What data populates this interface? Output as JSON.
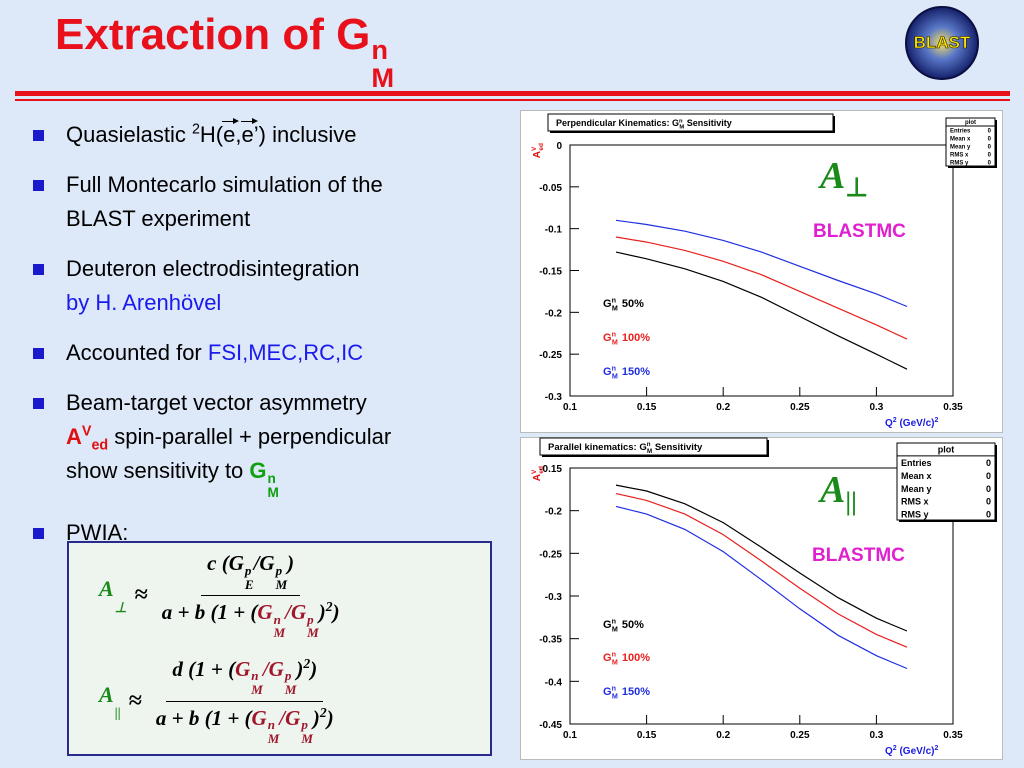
{
  "title": [
    {
      "t": "Extraction of G",
      "sup": "n",
      "sub": "M"
    }
  ],
  "logo": "BLAST",
  "bullets": [
    [
      [
        {
          "t": "Quasielastic "
        },
        {
          "t": "2",
          "s": "sup"
        },
        {
          "t": "H("
        },
        {
          "t": "e",
          "vec": true
        },
        {
          "t": ","
        },
        {
          "t": "e",
          "vec": true
        },
        {
          "t": "’) inclusive"
        }
      ]
    ],
    [
      [
        {
          "t": "Full Montecarlo simulation of the"
        }
      ],
      [
        {
          "t": "BLAST experiment"
        }
      ]
    ],
    [
      [
        {
          "t": "Deuteron electrodisintegration"
        }
      ],
      [
        {
          "t": "by H. Arenhövel",
          "c": "#1a1aee"
        }
      ]
    ],
    [
      [
        {
          "t": "Accounted for "
        },
        {
          "t": "FSI,MEC,RC,IC",
          "c": "#1a1aee"
        }
      ]
    ],
    [
      [
        {
          "t": "Beam-target vector asymmetry"
        }
      ],
      [
        {
          "t": "A",
          "c": "#e01010",
          "b": true
        },
        {
          "t": "V",
          "s": "sup",
          "c": "#e01010",
          "b": true
        },
        {
          "t": "ed",
          "s": "sub",
          "c": "#e01010",
          "b": true
        },
        {
          "t": " spin-parallel + perpendicular"
        }
      ],
      [
        {
          "t": "show sensitivity to "
        },
        {
          "t": "G",
          "sup": "n",
          "sub": "M",
          "c": "#10a010",
          "b": true
        }
      ]
    ],
    [
      [
        {
          "t": "PWIA:"
        }
      ]
    ]
  ],
  "formulas": [
    {
      "lhs": [
        {
          "t": "A",
          "sub": "⊥",
          "c": "#1a8a1a"
        }
      ],
      "rel": "≈",
      "num": [
        {
          "t": "c ("
        },
        {
          "t": "G",
          "sup": "p",
          "sub": "E"
        },
        {
          "t": "/"
        },
        {
          "t": "G",
          "sup": "p",
          "sub": "M"
        },
        {
          "t": ")"
        }
      ],
      "den": [
        {
          "t": "a + b (1 + ("
        },
        {
          "t": "G",
          "sup": "n",
          "sub": "M",
          "c": "#a0162a"
        },
        {
          "t": "/",
          "c": "#a0162a"
        },
        {
          "t": "G",
          "sup": "p",
          "sub": "M",
          "c": "#a0162a"
        },
        {
          "t": ")"
        },
        {
          "t": "2",
          "s": "sup"
        },
        {
          "t": ")"
        }
      ]
    },
    {
      "lhs": [
        {
          "t": "A",
          "sub": "||",
          "c": "#1a8a1a"
        }
      ],
      "rel": "≈",
      "num": [
        {
          "t": "d (1 + ("
        },
        {
          "t": "G",
          "sup": "n",
          "sub": "M",
          "c": "#a0162a"
        },
        {
          "t": "/",
          "c": "#a0162a"
        },
        {
          "t": "G",
          "sup": "p",
          "sub": "M",
          "c": "#a0162a"
        },
        {
          "t": ")"
        },
        {
          "t": "2",
          "s": "sup"
        },
        {
          "t": ")"
        }
      ],
      "den": [
        {
          "t": "a + b (1 + ("
        },
        {
          "t": "G",
          "sup": "n",
          "sub": "M",
          "c": "#a0162a"
        },
        {
          "t": "/",
          "c": "#a0162a"
        },
        {
          "t": "G",
          "sup": "p",
          "sub": "M",
          "c": "#a0162a"
        },
        {
          "t": ")"
        },
        {
          "t": "2",
          "s": "sup"
        },
        {
          "t": ")"
        }
      ]
    }
  ],
  "chart_data": [
    {
      "type": "line",
      "title": [
        {
          "t": "Perpendicular Kinematics: G",
          "sup": "n",
          "sub": "M"
        },
        {
          "t": " Sensitivity"
        }
      ],
      "xlabel": [
        {
          "t": "Q"
        },
        {
          "t": "2",
          "s": "sup"
        },
        {
          "t": " (GeV/c)"
        },
        {
          "t": "2",
          "s": "sup"
        }
      ],
      "ylabel": [
        {
          "t": "A",
          "sup": "V",
          "sub": "ed"
        }
      ],
      "x": [
        0.13,
        0.15,
        0.175,
        0.2,
        0.225,
        0.25,
        0.275,
        0.3,
        0.32
      ],
      "legend_prefix": {
        "t": "G",
        "sup": "n",
        "sub": "M"
      },
      "series": [
        {
          "name": "50%",
          "color": "#000000",
          "values": [
            -0.128,
            -0.136,
            -0.148,
            -0.163,
            -0.182,
            -0.205,
            -0.228,
            -0.25,
            -0.268
          ]
        },
        {
          "name": "100%",
          "color": "#e8201e",
          "values": [
            -0.11,
            -0.116,
            -0.126,
            -0.139,
            -0.155,
            -0.175,
            -0.195,
            -0.215,
            -0.232
          ]
        },
        {
          "name": "150%",
          "color": "#1f2fe0",
          "values": [
            -0.09,
            -0.095,
            -0.103,
            -0.114,
            -0.128,
            -0.145,
            -0.162,
            -0.178,
            -0.193
          ]
        }
      ],
      "xlim": [
        0.1,
        0.35
      ],
      "xticks": [
        0.1,
        0.15,
        0.2,
        0.25,
        0.3,
        0.35
      ],
      "ylim": [
        -0.3,
        0
      ],
      "yticks": [
        0,
        -0.05,
        -0.1,
        -0.15,
        -0.2,
        -0.25,
        -0.3
      ],
      "annotation": {
        "symbol": {
          "t": "A",
          "sub": "⊥"
        },
        "label": "BLASTMC"
      },
      "stats": {
        "title": "plot",
        "rows": [
          [
            "Entries",
            0
          ],
          [
            "Mean x",
            0
          ],
          [
            "Mean y",
            0
          ],
          [
            "RMS x",
            0
          ],
          [
            "RMS y",
            0
          ]
        ]
      }
    },
    {
      "type": "line",
      "title": [
        {
          "t": "Parallel kinematics: G",
          "sup": "n",
          "sub": "M"
        },
        {
          "t": " Sensitivity"
        }
      ],
      "xlabel": [
        {
          "t": "Q"
        },
        {
          "t": "2",
          "s": "sup"
        },
        {
          "t": " (GeV/c)"
        },
        {
          "t": "2",
          "s": "sup"
        }
      ],
      "ylabel": [
        {
          "t": "A",
          "sup": "V",
          "sub": "ed"
        }
      ],
      "x": [
        0.13,
        0.15,
        0.175,
        0.2,
        0.225,
        0.25,
        0.275,
        0.3,
        0.32
      ],
      "legend_prefix": {
        "t": "G",
        "sup": "n",
        "sub": "M"
      },
      "series": [
        {
          "name": "50%",
          "color": "#000000",
          "values": [
            -0.17,
            -0.177,
            -0.192,
            -0.214,
            -0.243,
            -0.273,
            -0.302,
            -0.326,
            -0.341
          ]
        },
        {
          "name": "100%",
          "color": "#e8201e",
          "values": [
            -0.18,
            -0.188,
            -0.204,
            -0.228,
            -0.259,
            -0.291,
            -0.321,
            -0.345,
            -0.36
          ]
        },
        {
          "name": "150%",
          "color": "#1f2fe0",
          "values": [
            -0.195,
            -0.204,
            -0.222,
            -0.248,
            -0.281,
            -0.315,
            -0.346,
            -0.37,
            -0.385
          ]
        }
      ],
      "xlim": [
        0.1,
        0.35
      ],
      "xticks": [
        0.1,
        0.15,
        0.2,
        0.25,
        0.3,
        0.35
      ],
      "ylim": [
        -0.45,
        -0.15
      ],
      "yticks": [
        -0.15,
        -0.2,
        -0.25,
        -0.3,
        -0.35,
        -0.4,
        -0.45
      ],
      "annotation": {
        "symbol": {
          "t": "A",
          "sub": "||"
        },
        "label": "BLASTMC"
      },
      "stats": {
        "title": "plot",
        "rows": [
          [
            "Entries",
            0
          ],
          [
            "Mean x",
            0
          ],
          [
            "Mean y",
            0
          ],
          [
            "RMS x",
            0
          ],
          [
            "RMS y",
            0
          ]
        ]
      }
    }
  ]
}
